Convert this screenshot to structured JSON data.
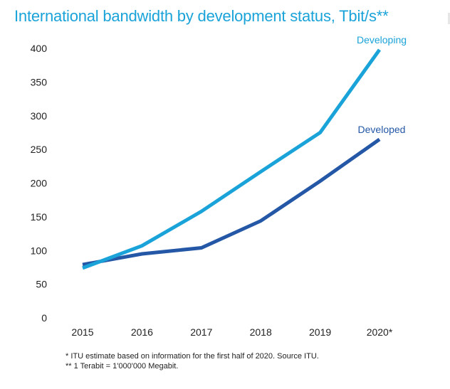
{
  "chart_data": {
    "type": "line",
    "title": "International bandwidth by development status, Tbit/s**",
    "categories": [
      "2015",
      "2016",
      "2017",
      "2018",
      "2019",
      "2020*"
    ],
    "series": [
      {
        "name": "Developing",
        "values": [
          74,
          107,
          158,
          217,
          275,
          398
        ],
        "color": "#1aa3d9"
      },
      {
        "name": "Developed",
        "values": [
          79,
          95,
          104,
          144,
          203,
          265
        ],
        "color": "#2457a6"
      }
    ],
    "y_ticks": [
      "0",
      "50",
      "100",
      "150",
      "200",
      "250",
      "300",
      "350",
      "400"
    ],
    "ylim": [
      0,
      400
    ],
    "xlabel": "",
    "ylabel": "",
    "grid": false,
    "legend": "inline labels at line ends"
  },
  "notes": [
    "* ITU estimate based on information for the first half of 2020.  Source ITU.",
    "** 1 Terabit = 1'000'000 Megabit."
  ]
}
